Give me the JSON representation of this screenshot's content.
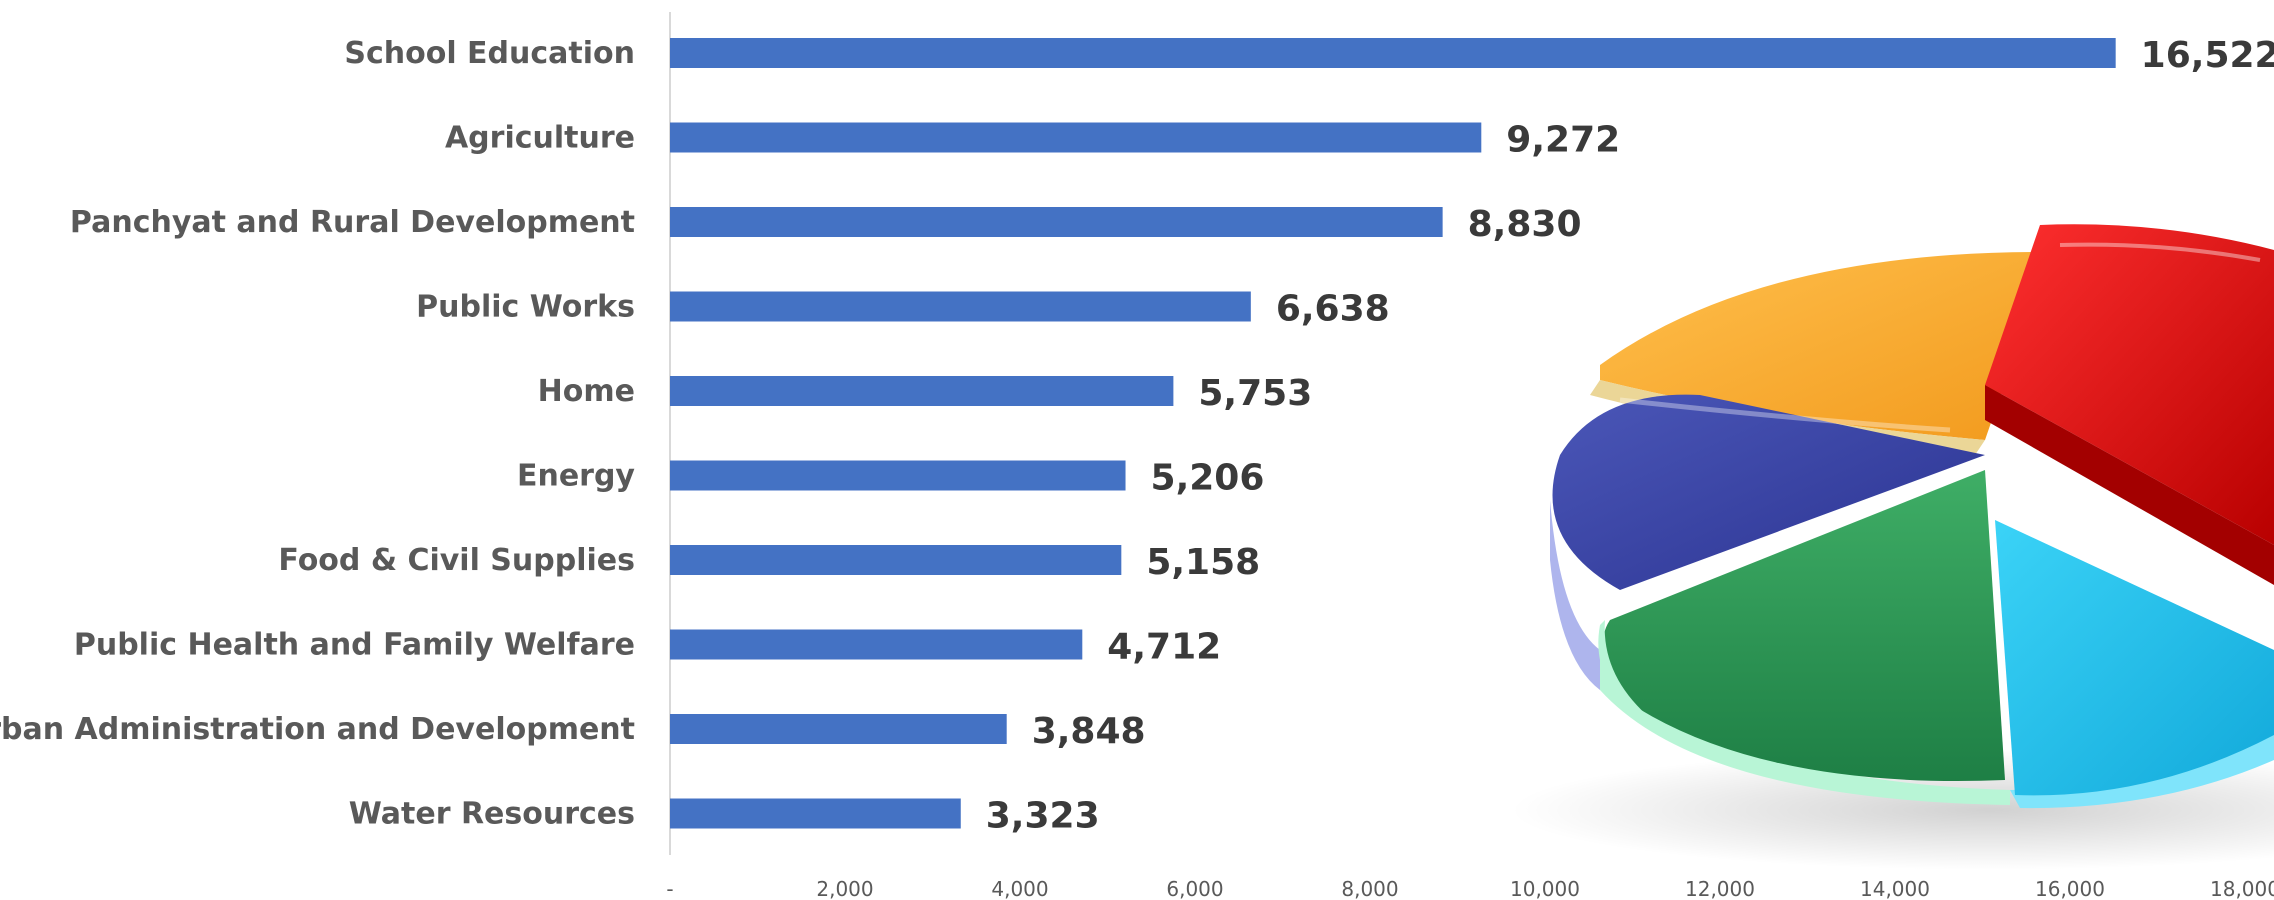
{
  "chart_data": {
    "type": "bar",
    "orientation": "horizontal",
    "categories": [
      "School Education",
      "Agriculture",
      "Panchyat and Rural Development",
      "Public Works",
      "Home",
      "Energy",
      "Food & Civil Supplies",
      "Public Health and Family Welfare",
      "Urban Administration and Development",
      "Water Resources"
    ],
    "values": [
      16522,
      9272,
      8830,
      6638,
      5753,
      5206,
      5158,
      4712,
      3848,
      3323
    ],
    "data_labels": [
      "16,522",
      "9,272",
      "8,830",
      "6,638",
      "5,753",
      "5,206",
      "5,158",
      "4,712",
      "3,848",
      "3,323"
    ],
    "x_ticks": [
      0,
      2000,
      4000,
      6000,
      8000,
      10000,
      12000,
      14000,
      16000,
      18000
    ],
    "x_tick_labels": [
      "-",
      "2,000",
      "4,000",
      "6,000",
      "8,000",
      "10,000",
      "12,000",
      "14,000",
      "16,000",
      "18,000"
    ],
    "xlim": [
      0,
      18000
    ],
    "title": "",
    "xlabel": "",
    "ylabel": "",
    "grid": false,
    "legend": "none",
    "bar_color": "#4472C4"
  },
  "decoration": {
    "name": "3d-pie-illustration",
    "colors": [
      "#FF1A1A",
      "#F9A825",
      "#3F51B5",
      "#2E9E57",
      "#1EC8F0"
    ]
  }
}
